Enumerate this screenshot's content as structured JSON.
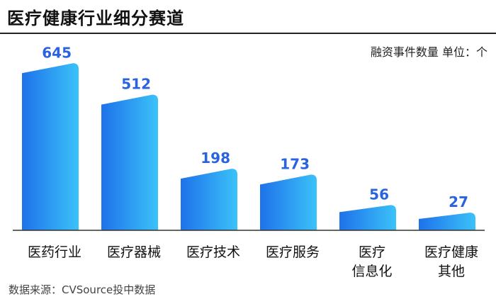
{
  "title": "医疗健康行业细分赛道",
  "unit_note": "融资事件数量 单位：个",
  "source": "数据来源：CVSource投中数据",
  "colors": {
    "bar_top": "#3bc2f8",
    "bar_bottom": "#1e72ea",
    "value_label": "#2a63e0",
    "axis": "#333333"
  },
  "chart_data": {
    "type": "bar",
    "categories": [
      [
        "医药行业"
      ],
      [
        "医疗器械"
      ],
      [
        "医疗技术"
      ],
      [
        "医疗服务"
      ],
      [
        "医疗",
        "信息化"
      ],
      [
        "医疗健康",
        "其他"
      ]
    ],
    "values": [
      645,
      512,
      198,
      173,
      56,
      27
    ],
    "ylim": [
      0,
      700
    ],
    "grid": false,
    "legend": "none"
  }
}
